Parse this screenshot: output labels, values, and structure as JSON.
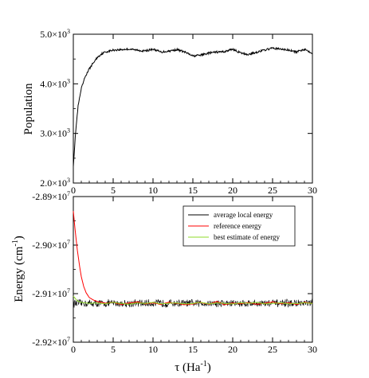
{
  "chart_data": [
    {
      "type": "line",
      "ylabel": "Population",
      "xlim": [
        0,
        30
      ],
      "ylim": [
        2000,
        5000
      ],
      "xticks": [
        0,
        5,
        10,
        15,
        20,
        25,
        30
      ],
      "xtick_labels": [
        "0",
        "5",
        "10",
        "15",
        "20",
        "25",
        "30"
      ],
      "yticks": [
        2000,
        3000,
        4000,
        5000
      ],
      "ytick_labels": [
        {
          "base": "2.0×10",
          "exp": "3"
        },
        {
          "base": "3.0×10",
          "exp": "3"
        },
        {
          "base": "4.0×10",
          "exp": "3"
        },
        {
          "base": "5.0×10",
          "exp": "3"
        }
      ],
      "series": [
        {
          "color": "#000000",
          "x": [
            0,
            0.3,
            0.6,
            1.0,
            1.5,
            2.0,
            2.5,
            3.0,
            3.5,
            4.0,
            4.5,
            5,
            6,
            7,
            8,
            9,
            10,
            11,
            12,
            13,
            14,
            15,
            16,
            17,
            18,
            19,
            20,
            21,
            22,
            23,
            24,
            25,
            26,
            27,
            28,
            29,
            30
          ],
          "y": [
            2350,
            3050,
            3550,
            3900,
            4150,
            4300,
            4420,
            4530,
            4600,
            4640,
            4660,
            4680,
            4690,
            4700,
            4680,
            4660,
            4700,
            4640,
            4660,
            4690,
            4640,
            4560,
            4580,
            4620,
            4640,
            4650,
            4700,
            4620,
            4590,
            4640,
            4680,
            4720,
            4700,
            4680,
            4640,
            4700,
            4620
          ]
        }
      ]
    },
    {
      "type": "line",
      "xlabel": {
        "base": "τ (Ha",
        "exp": "-1",
        "close": ")"
      },
      "ylabel": {
        "base": "Energy (cm",
        "exp": "-1",
        "close": ")"
      },
      "xlim": [
        0,
        30
      ],
      "ylim": [
        -29200000,
        -28900000
      ],
      "xticks": [
        0,
        5,
        10,
        15,
        20,
        25,
        30
      ],
      "xtick_labels": [
        "0",
        "5",
        "10",
        "15",
        "20",
        "25",
        "30"
      ],
      "yticks": [
        -29200000,
        -29100000,
        -29000000,
        -28900000
      ],
      "ytick_labels": [
        {
          "base": "-2.92×10",
          "exp": "7"
        },
        {
          "base": "-2.91×10",
          "exp": "7"
        },
        {
          "base": "-2.90×10",
          "exp": "7"
        },
        {
          "base": "-2.89×10",
          "exp": "7"
        }
      ],
      "legend_position": "top-right",
      "series": [
        {
          "name": "average local energy",
          "color": "#000000",
          "noisy": true,
          "mean": -29120000,
          "noise_amplitude": 7000
        },
        {
          "name": "reference energy",
          "color": "#ff0000",
          "x": [
            0,
            0.2,
            0.5,
            0.8,
            1.0,
            1.3,
            1.6,
            2.0,
            2.5,
            3.0,
            4,
            5,
            6,
            7,
            8,
            9,
            10,
            11,
            12,
            13,
            14,
            15,
            16,
            17,
            18,
            19,
            20,
            21,
            22,
            23,
            24,
            25,
            26,
            27,
            28,
            29,
            30
          ],
          "y": [
            -28930000,
            -28965000,
            -29010000,
            -29045000,
            -29065000,
            -29085000,
            -29098000,
            -29108000,
            -29113000,
            -29116000,
            -29120000,
            -29118000,
            -29122000,
            -29119000,
            -29117000,
            -29121000,
            -29119000,
            -29122000,
            -29118000,
            -29120000,
            -29123000,
            -29121000,
            -29118000,
            -29122000,
            -29116000,
            -29123000,
            -29119000,
            -29121000,
            -29118000,
            -29122000,
            -29120000,
            -29117000,
            -29121000,
            -29119000,
            -29122000,
            -29118000,
            -29120000
          ]
        },
        {
          "name": "best estimate of energy",
          "color": "#8fdb2a",
          "x": [
            0,
            0.5,
            1,
            2,
            3,
            4,
            5,
            6,
            7,
            8,
            9,
            10,
            11,
            12,
            13,
            14,
            15,
            16,
            17,
            18,
            19,
            20,
            21,
            22,
            23,
            24,
            25,
            26,
            27,
            28,
            29,
            30
          ],
          "y": [
            -29105000,
            -29115000,
            -29118000,
            -29120000,
            -29119000,
            -29121000,
            -29118000,
            -29120000,
            -29122000,
            -29119000,
            -29120000,
            -29118000,
            -29121000,
            -29120000,
            -29119000,
            -29121000,
            -29120000,
            -29118000,
            -29121000,
            -29119000,
            -29120000,
            -29121000,
            -29119000,
            -29120000,
            -29118000,
            -29121000,
            -29120000,
            -29119000,
            -29121000,
            -29120000,
            -29119000,
            -29120000
          ]
        }
      ]
    }
  ]
}
